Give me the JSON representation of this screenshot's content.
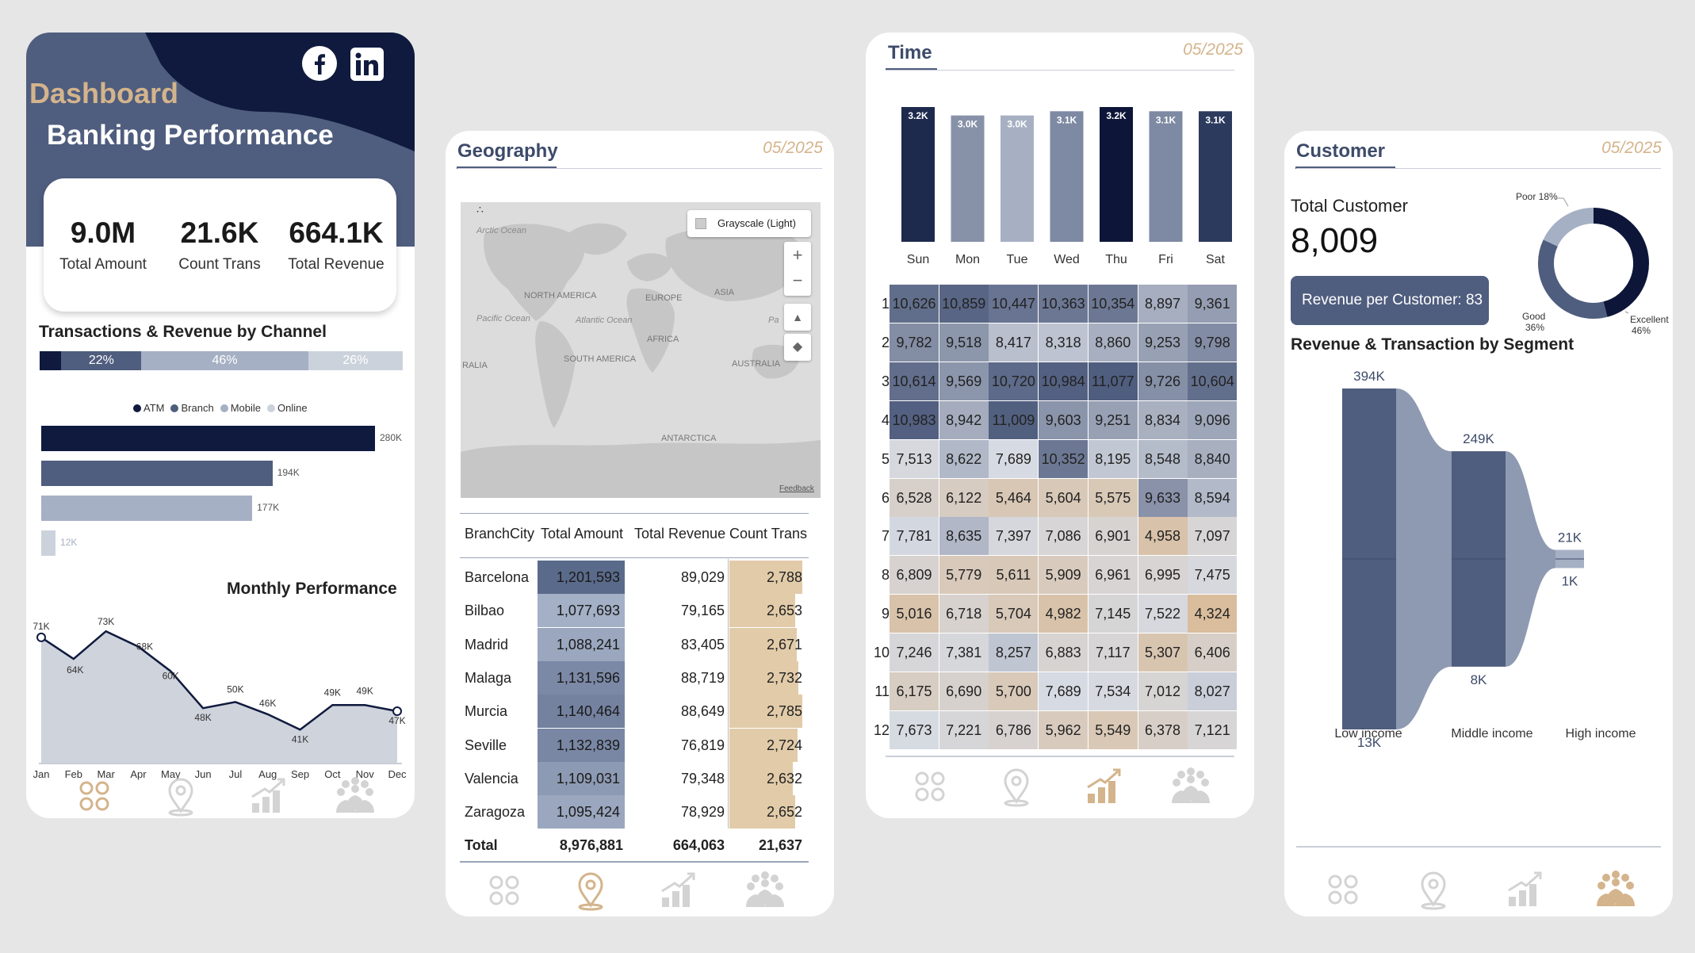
{
  "dashboard": {
    "brand": "Dashboard",
    "title": "Banking Performance",
    "kpis": [
      {
        "value": "9.0M",
        "label": "Total Amount"
      },
      {
        "value": "21.6K",
        "label": "Count Trans"
      },
      {
        "value": "664.1K",
        "label": "Total Revenue"
      }
    ],
    "channel_title": "Transactions & Revenue by Channel",
    "channel_share": [
      {
        "label": "",
        "pct": 6,
        "color": "#0f1a3e"
      },
      {
        "label": "22%",
        "pct": 22,
        "color": "#4f5d7e"
      },
      {
        "label": "46%",
        "pct": 46,
        "color": "#a6b0c4"
      },
      {
        "label": "26%",
        "pct": 26,
        "color": "#ccd2dc"
      }
    ],
    "legend": [
      "ATM",
      "Branch",
      "Mobile",
      "Online"
    ],
    "legend_colors": [
      "#0f1a3e",
      "#4f5d7e",
      "#a6b0c4",
      "#ccd2dc"
    ],
    "channel_bars": [
      {
        "label": "280K",
        "value": 280
      },
      {
        "label": "194K",
        "value": 194
      },
      {
        "label": "177K",
        "value": 177
      },
      {
        "label": "12K",
        "value": 12
      }
    ],
    "monthly_title": "Monthly Performance",
    "months": [
      "Jan",
      "Feb",
      "Mar",
      "Apr",
      "May",
      "Jun",
      "Jul",
      "Aug",
      "Sep",
      "Oct",
      "Nov",
      "Dec"
    ],
    "monthly_values": [
      71,
      64,
      73,
      68,
      60,
      48,
      50,
      46,
      41,
      49,
      49,
      47
    ],
    "monthly_labels": [
      "71K",
      "64K",
      "73K",
      "68K",
      "60K",
      "48K",
      "50K",
      "46K",
      "41K",
      "49K",
      "49K",
      "47K"
    ]
  },
  "geography": {
    "title": "Geography",
    "date": "05/2025",
    "map": {
      "style_label": "Grayscale (Light)",
      "labels": [
        "Arctic Ocean",
        "NORTH AMERICA",
        "EUROPE",
        "ASIA",
        "Pacific Ocean",
        "Atlantic Ocean",
        "AFRICA",
        "SOUTH AMERICA",
        "AUSTRALIA",
        "RALIA",
        "Pa",
        "ANTARCTICA"
      ],
      "feedback": "Feedback"
    },
    "table": {
      "headers": [
        "BranchCity",
        "Total Amount",
        "Total Revenue",
        "Count Trans"
      ],
      "rows": [
        {
          "city": "Barcelona",
          "amount": "1,201,593",
          "revenue": "89,029",
          "count": "2,788"
        },
        {
          "city": "Bilbao",
          "amount": "1,077,693",
          "revenue": "79,165",
          "count": "2,653"
        },
        {
          "city": "Madrid",
          "amount": "1,088,241",
          "revenue": "83,405",
          "count": "2,671"
        },
        {
          "city": "Malaga",
          "amount": "1,131,596",
          "revenue": "88,719",
          "count": "2,732"
        },
        {
          "city": "Murcia",
          "amount": "1,140,464",
          "revenue": "88,649",
          "count": "2,785"
        },
        {
          "city": "Seville",
          "amount": "1,132,839",
          "revenue": "76,819",
          "count": "2,724"
        },
        {
          "city": "Valencia",
          "amount": "1,109,031",
          "revenue": "79,348",
          "count": "2,632"
        },
        {
          "city": "Zaragoza",
          "amount": "1,095,424",
          "revenue": "78,929",
          "count": "2,652"
        }
      ],
      "amount_colors": [
        "#5a6a8a",
        "#a3b0c6",
        "#9aa7be",
        "#7b89a6",
        "#7482a0",
        "#7987a4",
        "#8d9ab3",
        "#9aa7be"
      ],
      "count_fill": [
        1.0,
        0.9,
        0.92,
        0.95,
        1.0,
        0.94,
        0.87,
        0.9
      ],
      "total": {
        "label": "Total",
        "amount": "8,976,881",
        "revenue": "664,063",
        "count": "21,637"
      }
    }
  },
  "time": {
    "title": "Time",
    "date": "05/2025",
    "days": [
      "Sun",
      "Mon",
      "Tue",
      "Wed",
      "Thu",
      "Fri",
      "Sat"
    ],
    "day_values": [
      3.2,
      3.0,
      3.0,
      3.1,
      3.2,
      3.1,
      3.1
    ],
    "day_labels": [
      "3.2K",
      "3.0K",
      "3.0K",
      "3.1K",
      "3.2K",
      "3.1K",
      "3.1K"
    ],
    "day_colors": [
      "#1d2a4d",
      "#8792a8",
      "#a7b0c3",
      "#7e8aa3",
      "#0d1638",
      "#7e8aa3",
      "#2c3a5d"
    ],
    "rows": [
      "1",
      "2",
      "3",
      "4",
      "5",
      "6",
      "7",
      "8",
      "9",
      "10",
      "11",
      "12"
    ],
    "heatmap": [
      [
        "10,626",
        "10,859",
        "10,447",
        "10,363",
        "10,354",
        "8,897",
        "9,361"
      ],
      [
        "9,782",
        "9,518",
        "8,417",
        "8,318",
        "8,860",
        "9,253",
        "9,798"
      ],
      [
        "10,614",
        "9,569",
        "10,720",
        "10,984",
        "11,077",
        "9,726",
        "10,604"
      ],
      [
        "10,983",
        "8,942",
        "11,009",
        "9,603",
        "9,251",
        "8,834",
        "9,096"
      ],
      [
        "7,513",
        "8,622",
        "7,689",
        "10,352",
        "8,195",
        "8,548",
        "8,840"
      ],
      [
        "6,528",
        "6,122",
        "5,464",
        "5,604",
        "5,575",
        "9,633",
        "8,594"
      ],
      [
        "7,781",
        "8,635",
        "7,397",
        "7,086",
        "6,901",
        "4,958",
        "7,097"
      ],
      [
        "6,809",
        "5,779",
        "5,611",
        "5,909",
        "6,961",
        "6,995",
        "7,475"
      ],
      [
        "5,016",
        "6,718",
        "5,704",
        "4,982",
        "7,145",
        "7,522",
        "4,324"
      ],
      [
        "7,246",
        "7,381",
        "8,257",
        "6,883",
        "7,117",
        "5,307",
        "6,406"
      ],
      [
        "6,175",
        "6,690",
        "5,700",
        "7,689",
        "7,534",
        "7,012",
        "8,027"
      ],
      [
        "7,673",
        "7,221",
        "6,786",
        "5,962",
        "5,549",
        "6,378",
        "7,121"
      ]
    ]
  },
  "customer": {
    "title": "Customer",
    "date": "05/2025",
    "total_label": "Total Customer",
    "total_value": "8,009",
    "rev_per_customer": "Revenue per Customer: 83",
    "donut": [
      {
        "label": "Excellent",
        "pct_label": "46%",
        "pct": 46,
        "color": "#0d1638"
      },
      {
        "label": "Good",
        "pct_label": "36%",
        "pct": 36,
        "color": "#4f5d7e"
      },
      {
        "label": "Poor 18%",
        "pct_label": "",
        "pct": 18,
        "color": "#a6b0c4"
      }
    ],
    "segment_title": "Revenue & Transaction by Segment",
    "segments": [
      {
        "name": "Low income",
        "revenue": "394K",
        "trans": "13K",
        "rev_value": 394,
        "trans_value": 13
      },
      {
        "name": "Middle income",
        "revenue": "249K",
        "trans": "8K",
        "rev_value": 249,
        "trans_value": 8
      },
      {
        "name": "High income",
        "revenue": "21K",
        "trans": "1K",
        "rev_value": 21,
        "trans_value": 1
      }
    ]
  },
  "colors": {
    "navy": "#0f1a3e",
    "slate": "#4f5d7e",
    "tan": "#d9bd9c",
    "accent_nav": "#d4b48c"
  },
  "nav_icons": [
    "dashboard-icon",
    "location-pin-icon",
    "growth-chart-icon",
    "team-icon"
  ]
}
